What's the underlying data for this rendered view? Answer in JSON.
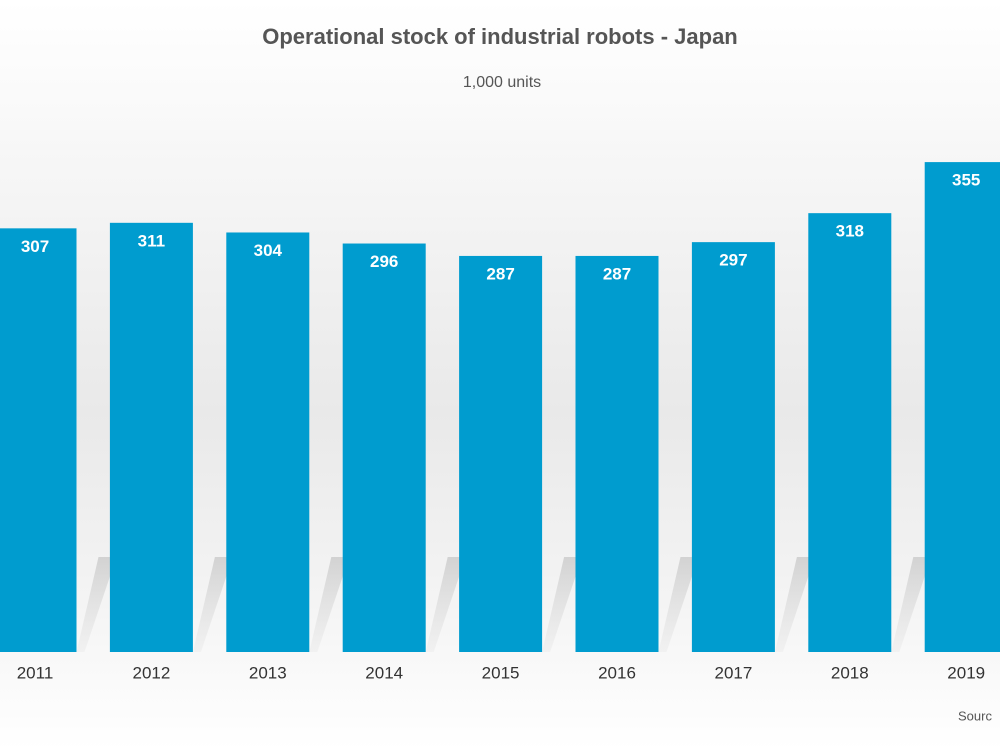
{
  "chart_data": {
    "type": "bar",
    "title": "Operational stock of industrial robots - Japan",
    "subtitle": "1,000 units",
    "source": "Sourc",
    "categories": [
      "2011",
      "2012",
      "2013",
      "2014",
      "2015",
      "2016",
      "2017",
      "2018",
      "2019"
    ],
    "values": [
      307,
      311,
      304,
      296,
      287,
      287,
      297,
      318,
      355
    ],
    "color": "#009ccf"
  }
}
